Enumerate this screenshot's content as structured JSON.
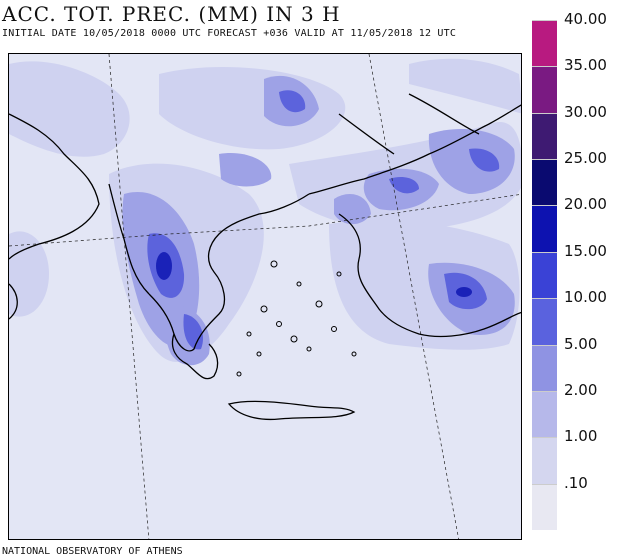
{
  "title": "ACC. TOT. PREC. (MM) IN 3 H",
  "subtitle": "INITIAL DATE 10/05/2018  0000 UTC FORECAST +036 VALID AT  11/05/2018  12 UTC",
  "footer": "NATIONAL OBSERVATORY OF ATHENS",
  "legend": {
    "unit": "mm",
    "levels": [
      {
        "label": ".10",
        "color": "#e8e8f2"
      },
      {
        "label": "1.00",
        "color": "#d4d6ef"
      },
      {
        "label": "2.00",
        "color": "#b6b8ea"
      },
      {
        "label": "5.00",
        "color": "#8f93e3"
      },
      {
        "label": "10.00",
        "color": "#5a62de"
      },
      {
        "label": "15.00",
        "color": "#3a42d6"
      },
      {
        "label": "20.00",
        "color": "#0d12b0"
      },
      {
        "label": "25.00",
        "color": "#0a0a70"
      },
      {
        "label": "30.00",
        "color": "#3e1a72"
      },
      {
        "label": "35.00",
        "color": "#7a1a82"
      },
      {
        "label": "40.00",
        "color": "#b81a80"
      }
    ]
  },
  "map": {
    "region": "Greece / Aegean / western Turkey",
    "background_color": "#e3e6f5",
    "coast_color": "#000000"
  }
}
